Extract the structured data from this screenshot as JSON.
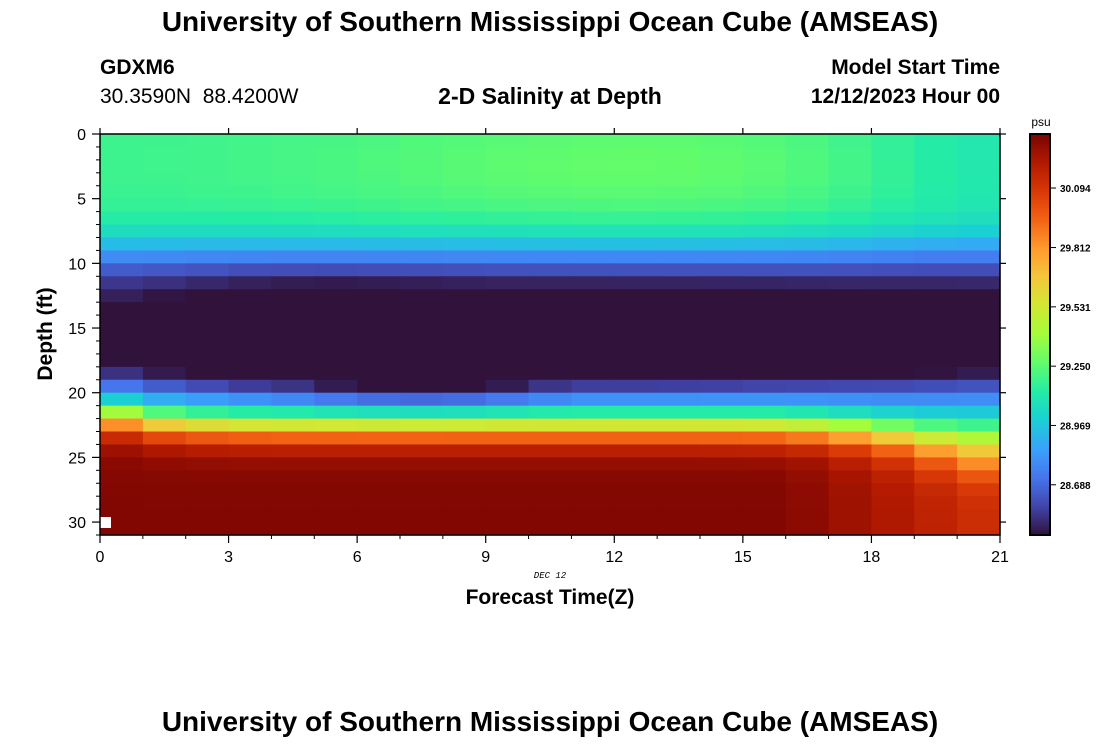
{
  "page": {
    "title": "University of Southern Mississippi Ocean Cube (AMSEAS)",
    "bottom_title": "University of Southern Mississippi Ocean Cube (AMSEAS)",
    "station": "GDXM6",
    "coords": "30.3590N  88.4200W",
    "plot_title": "2-D Salinity at Depth",
    "model_start_label": "Model Start Time",
    "model_start_value": "12/12/2023 Hour 00"
  },
  "colors": {
    "colormap": [
      "#30123b",
      "#4145ab",
      "#4675ed",
      "#39a2fc",
      "#1bcfd4",
      "#24eca6",
      "#61fc6c",
      "#a4fc3b",
      "#d1e834",
      "#f3c63a",
      "#fe9b2d",
      "#f36315",
      "#d93806",
      "#b11901",
      "#7a0402"
    ]
  },
  "chart_data": {
    "type": "heatmap",
    "title": "2-D Salinity at Depth",
    "xlabel": "Forecast Time(Z)",
    "ylabel": "Depth (ft)",
    "x_sublabel": "DEC 12",
    "xlim": [
      0,
      21
    ],
    "ylim": [
      0,
      31
    ],
    "x_ticks": [
      0,
      3,
      6,
      9,
      12,
      15,
      18,
      21
    ],
    "y_ticks": [
      0,
      5,
      10,
      15,
      20,
      25,
      30
    ],
    "colorbar": {
      "unit": "psu",
      "range": [
        28.45,
        30.35
      ],
      "ticks": [
        "30.094",
        "29.812",
        "29.531",
        "29.250",
        "28.969",
        "28.688"
      ],
      "tick_values": [
        30.094,
        29.812,
        29.531,
        29.25,
        28.969,
        28.688
      ]
    },
    "grid": {
      "hours": 21,
      "depth_levels": 31,
      "summary": [
        {
          "depth_ft": 0,
          "salinity_psu": 29.2
        },
        {
          "depth_ft": 5,
          "salinity_psu": 29.24
        },
        {
          "depth_ft": 10,
          "salinity_psu": 28.85
        },
        {
          "depth_ft": 15,
          "salinity_psu": 28.65
        },
        {
          "depth_ft": 19,
          "salinity_psu": 28.5
        },
        {
          "depth_ft": 22,
          "salinity_psu": 29.1
        },
        {
          "depth_ft": 25,
          "salinity_psu": 29.9
        },
        {
          "depth_ft": 30,
          "salinity_psu": 30.3
        }
      ],
      "min_psu": 28.47,
      "max_psu": 30.33
    }
  }
}
